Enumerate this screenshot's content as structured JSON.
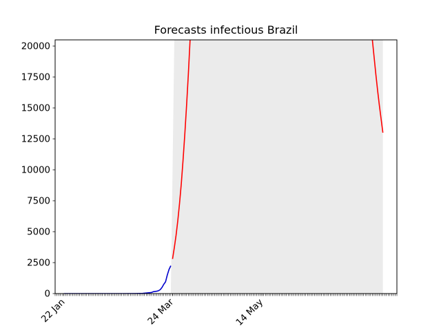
{
  "chart_data": {
    "type": "line",
    "title": "Forecasts infectious Brazil",
    "xlabel": "",
    "ylabel": "",
    "x_axis": {
      "scale": "date",
      "range": [
        "2020-01-17",
        "2020-07-30"
      ],
      "tick_dates": [
        "2020-01-22",
        "2020-03-24",
        "2020-05-14"
      ],
      "tick_labels": [
        "22 Jan",
        "24 Mar",
        "14 May"
      ],
      "minor_ticks": "daily"
    },
    "y_axis": {
      "range": [
        0,
        20500
      ],
      "ticks": [
        0,
        2500,
        5000,
        7500,
        10000,
        12500,
        15000,
        17500,
        20000
      ],
      "tick_labels": [
        "0",
        "2500",
        "5000",
        "7500",
        "10000",
        "12500",
        "15000",
        "17500",
        "20000"
      ]
    },
    "grid": false,
    "legend": "none",
    "colors": {
      "observed": "#0000cc",
      "forecast": "#ff0000",
      "band": "#ebebeb"
    },
    "series": [
      {
        "role": "observed",
        "color": "#0000cc",
        "points": [
          {
            "x": "2020-01-22",
            "y": 0
          },
          {
            "x": "2020-02-01",
            "y": 0
          },
          {
            "x": "2020-02-15",
            "y": 0
          },
          {
            "x": "2020-02-25",
            "y": 0
          },
          {
            "x": "2020-03-03",
            "y": 5
          },
          {
            "x": "2020-03-07",
            "y": 20
          },
          {
            "x": "2020-03-10",
            "y": 60
          },
          {
            "x": "2020-03-12",
            "y": 90
          },
          {
            "x": "2020-03-13",
            "y": 150
          },
          {
            "x": "2020-03-14",
            "y": 170
          },
          {
            "x": "2020-03-15",
            "y": 190
          },
          {
            "x": "2020-03-16",
            "y": 230
          },
          {
            "x": "2020-03-17",
            "y": 320
          },
          {
            "x": "2020-03-18",
            "y": 500
          },
          {
            "x": "2020-03-19",
            "y": 750
          },
          {
            "x": "2020-03-20",
            "y": 950
          },
          {
            "x": "2020-03-21",
            "y": 1500
          },
          {
            "x": "2020-03-22",
            "y": 1950
          },
          {
            "x": "2020-03-23",
            "y": 2250
          }
        ]
      },
      {
        "role": "forecast",
        "color": "#ff0000",
        "points": [
          {
            "x": "2020-03-24",
            "y": 2800
          },
          {
            "x": "2020-03-25",
            "y": 3700
          },
          {
            "x": "2020-03-26",
            "y": 4700
          },
          {
            "x": "2020-03-27",
            "y": 5900
          },
          {
            "x": "2020-03-28",
            "y": 7300
          },
          {
            "x": "2020-03-29",
            "y": 8900
          },
          {
            "x": "2020-03-30",
            "y": 10800
          },
          {
            "x": "2020-03-31",
            "y": 12900
          },
          {
            "x": "2020-04-01",
            "y": 15200
          },
          {
            "x": "2020-04-02",
            "y": 17700
          },
          {
            "x": "2020-04-03",
            "y": 20500
          }
        ]
      },
      {
        "role": "forecast",
        "color": "#ff0000",
        "points": [
          {
            "x": "2020-07-16",
            "y": 20500
          },
          {
            "x": "2020-07-17",
            "y": 19100
          },
          {
            "x": "2020-07-18",
            "y": 17700
          },
          {
            "x": "2020-07-19",
            "y": 16400
          },
          {
            "x": "2020-07-20",
            "y": 15200
          },
          {
            "x": "2020-07-21",
            "y": 14100
          },
          {
            "x": "2020-07-22",
            "y": 13000
          }
        ]
      }
    ],
    "band": {
      "role": "forecast interval",
      "upper": [
        {
          "x": "2020-03-23",
          "y": 0
        },
        {
          "x": "2020-03-24",
          "y": 10000
        },
        {
          "x": "2020-03-25",
          "y": 20500
        },
        {
          "x": "2020-07-22",
          "y": 20500
        }
      ],
      "lower": [
        {
          "x": "2020-03-23",
          "y": 0
        },
        {
          "x": "2020-07-22",
          "y": 0
        }
      ]
    }
  }
}
